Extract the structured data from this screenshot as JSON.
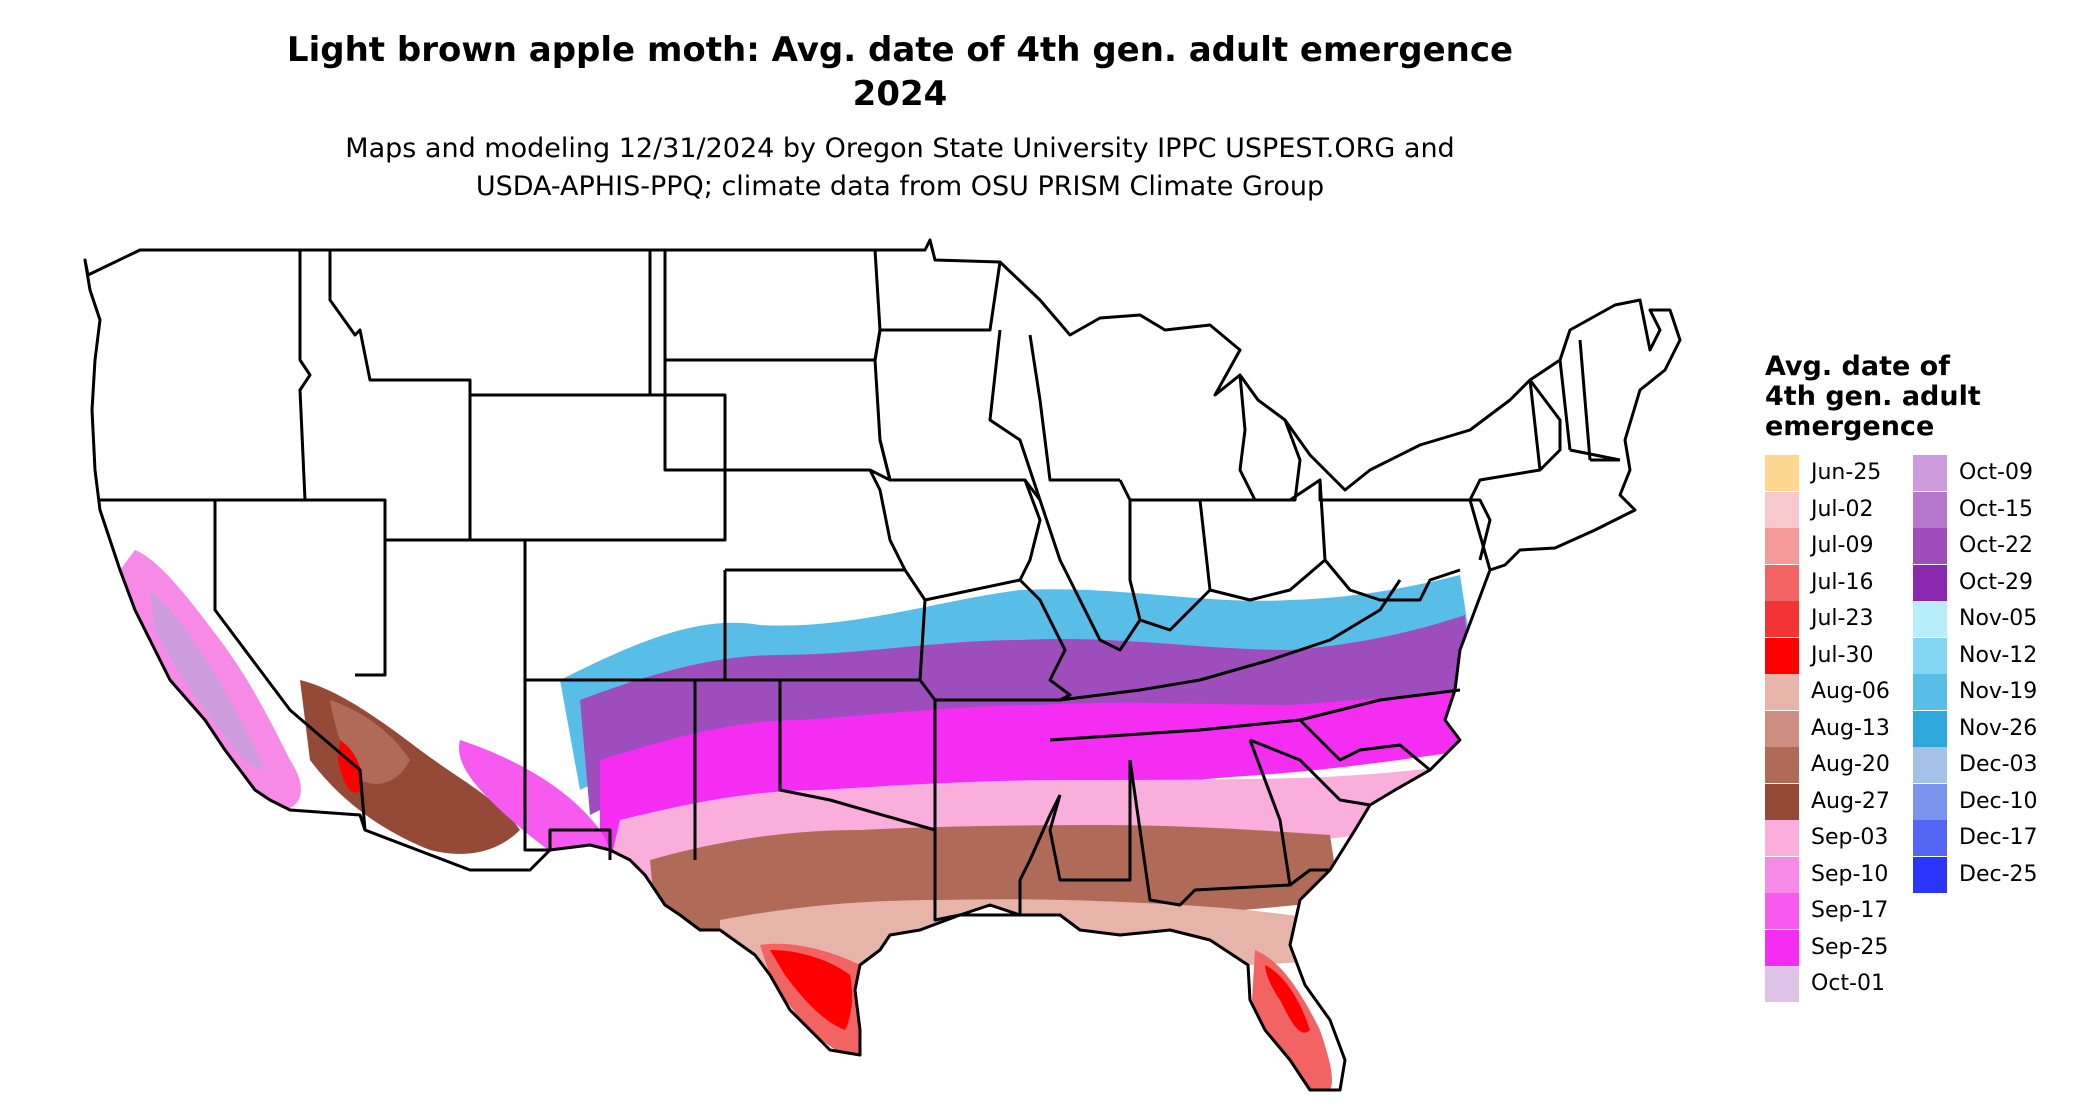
{
  "title_line1": "Light brown apple moth: Avg. date of 4th gen. adult emergence",
  "title_line2": "2024",
  "subtitle_line1": "Maps and modeling 12/31/2024 by Oregon State University IPPC USPEST.ORG and",
  "subtitle_line2": "USDA-APHIS-PPQ; climate data from OSU PRISM Climate Group",
  "legend": {
    "title_lines": [
      "Avg. date of",
      "4th gen. adult",
      "emergence"
    ],
    "items": [
      {
        "label": "Jun-25",
        "color": "#FDD78F"
      },
      {
        "label": "Jul-02",
        "color": "#F7C8CC"
      },
      {
        "label": "Jul-09",
        "color": "#F49A9A"
      },
      {
        "label": "Jul-16",
        "color": "#F26464"
      },
      {
        "label": "Jul-23",
        "color": "#F23434"
      },
      {
        "label": "Jul-30",
        "color": "#FF0000"
      },
      {
        "label": "Aug-06",
        "color": "#E6B4A8"
      },
      {
        "label": "Aug-13",
        "color": "#CC8E80"
      },
      {
        "label": "Aug-20",
        "color": "#B06A58"
      },
      {
        "label": "Aug-27",
        "color": "#944A36"
      },
      {
        "label": "Sep-03",
        "color": "#F9AEDC"
      },
      {
        "label": "Sep-10",
        "color": "#F78AE6"
      },
      {
        "label": "Sep-17",
        "color": "#F65AEE"
      },
      {
        "label": "Sep-25",
        "color": "#F52CF2"
      },
      {
        "label": "Oct-01",
        "color": "#DEC2E8"
      },
      {
        "label": "Oct-09",
        "color": "#CC9CDC"
      },
      {
        "label": "Oct-15",
        "color": "#B676CC"
      },
      {
        "label": "Oct-22",
        "color": "#9E4EBC"
      },
      {
        "label": "Oct-29",
        "color": "#8A28AE"
      },
      {
        "label": "Nov-05",
        "color": "#B6EEFC"
      },
      {
        "label": "Nov-12",
        "color": "#84D6F2"
      },
      {
        "label": "Nov-19",
        "color": "#58BEE8"
      },
      {
        "label": "Nov-26",
        "color": "#2EA8DC"
      },
      {
        "label": "Dec-03",
        "color": "#A4C2E8"
      },
      {
        "label": "Dec-10",
        "color": "#7C94EE"
      },
      {
        "label": "Dec-17",
        "color": "#5466F4"
      },
      {
        "label": "Dec-25",
        "color": "#2A34FA"
      }
    ]
  }
}
